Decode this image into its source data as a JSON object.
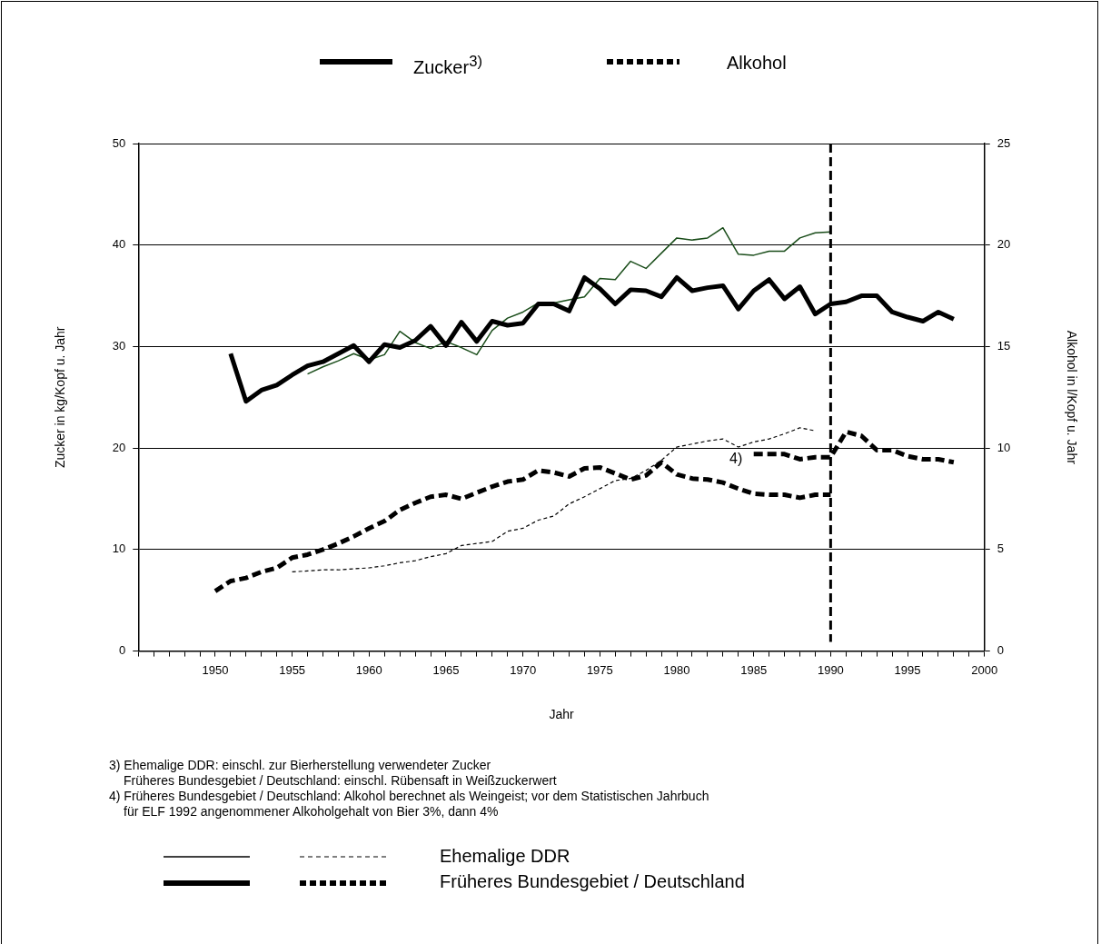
{
  "chart_data": {
    "type": "line",
    "xlabel": "Jahr",
    "ylabel": "Zucker in kg/Kopf u. Jahr",
    "y2label": "Alkohol in l/Kopf u. Jahr",
    "xlim": [
      1945,
      2000
    ],
    "xticks": [
      {
        "value": 1945,
        "label": null
      },
      {
        "value": 1946,
        "label": null
      },
      {
        "value": 1947,
        "label": null
      },
      {
        "value": 1948,
        "label": null
      },
      {
        "value": 1949,
        "label": null
      },
      1950,
      {
        "value": 1951,
        "label": null
      },
      {
        "value": 1952,
        "label": null
      },
      {
        "value": 1953,
        "label": null
      },
      {
        "value": 1954,
        "label": null
      },
      1955,
      {
        "value": 1956,
        "label": null
      },
      {
        "value": 1957,
        "label": null
      },
      {
        "value": 1958,
        "label": null
      },
      {
        "value": 1959,
        "label": null
      },
      1960,
      {
        "value": 1961,
        "label": null
      },
      {
        "value": 1962,
        "label": null
      },
      {
        "value": 1963,
        "label": null
      },
      {
        "value": 1964,
        "label": null
      },
      1965,
      {
        "value": 1966,
        "label": null
      },
      {
        "value": 1967,
        "label": null
      },
      {
        "value": 1968,
        "label": null
      },
      {
        "value": 1969,
        "label": null
      },
      1970,
      {
        "value": 1971,
        "label": null
      },
      {
        "value": 1972,
        "label": null
      },
      {
        "value": 1973,
        "label": null
      },
      {
        "value": 1974,
        "label": null
      },
      1975,
      {
        "value": 1976,
        "label": null
      },
      {
        "value": 1977,
        "label": null
      },
      {
        "value": 1978,
        "label": null
      },
      {
        "value": 1979,
        "label": null
      },
      1980,
      {
        "value": 1981,
        "label": null
      },
      {
        "value": 1982,
        "label": null
      },
      {
        "value": 1983,
        "label": null
      },
      {
        "value": 1984,
        "label": null
      },
      1985,
      {
        "value": 1986,
        "label": null
      },
      {
        "value": 1987,
        "label": null
      },
      {
        "value": 1988,
        "label": null
      },
      {
        "value": 1989,
        "label": null
      },
      1990,
      {
        "value": 1991,
        "label": null
      },
      {
        "value": 1992,
        "label": null
      },
      {
        "value": 1993,
        "label": null
      },
      {
        "value": 1994,
        "label": null
      },
      1995,
      {
        "value": 1996,
        "label": null
      },
      {
        "value": 1997,
        "label": null
      },
      {
        "value": 1998,
        "label": null
      },
      {
        "value": 1999,
        "label": null
      },
      2000
    ],
    "ylim": [
      0,
      50
    ],
    "yticks": [
      0,
      10,
      20,
      30,
      40,
      50
    ],
    "y2lim": [
      0,
      25
    ],
    "y2ticks": [
      0,
      5,
      10,
      15,
      20,
      25
    ],
    "grid": "y",
    "marker": "none",
    "series": [
      {
        "color": "#000000",
        "line_style": "solid",
        "x": [
          1951,
          1952,
          1953,
          1954,
          1955,
          1956,
          1957,
          1958,
          1959,
          1960,
          1961,
          1962,
          1963,
          1964,
          1965,
          1966,
          1967,
          1968,
          1969,
          1970,
          1971,
          1972,
          1973,
          1974,
          1975,
          1976,
          1977,
          1978,
          1979,
          1980,
          1981,
          1982,
          1983,
          1984,
          1985,
          1986,
          1987,
          1988,
          1989,
          1990,
          1991,
          1992,
          1993,
          1994,
          1995,
          1996,
          1997,
          1998
        ],
        "values": [
          29.3,
          24.6,
          25.7,
          26.2,
          27.2,
          28.1,
          28.5,
          29.3,
          30.1,
          28.5,
          30.2,
          29.9,
          30.6,
          32.0,
          30.1,
          32.4,
          30.5,
          32.5,
          32.1,
          32.3,
          34.2,
          34.2,
          33.5,
          36.8,
          35.7,
          34.2,
          35.6,
          35.5,
          34.9,
          36.8,
          35.5,
          35.8,
          36.0,
          33.7,
          35.5,
          36.6,
          34.7,
          35.9,
          33.2,
          34.2,
          34.4,
          35.0,
          35.0,
          33.4,
          32.9,
          32.5,
          33.4,
          32.7
        ]
      },
      {
        "color": "#1a4d1a",
        "line_style": "solid",
        "x": [
          1956,
          1957,
          1958,
          1959,
          1960,
          1961,
          1962,
          1963,
          1964,
          1965,
          1966,
          1967,
          1968,
          1969,
          1970,
          1971,
          1972,
          1973,
          1974,
          1975,
          1976,
          1977,
          1978,
          1979,
          1980,
          1981,
          1982,
          1983,
          1984,
          1985,
          1986,
          1987,
          1988,
          1989,
          1990
        ],
        "values": [
          27.3,
          28.0,
          28.6,
          29.3,
          28.7,
          29.2,
          31.5,
          30.4,
          29.8,
          30.5,
          29.9,
          29.2,
          31.6,
          32.8,
          33.4,
          34.3,
          34.3,
          34.6,
          34.9,
          36.7,
          36.6,
          38.4,
          37.7,
          39.2,
          40.7,
          40.5,
          40.7,
          41.7,
          39.1,
          39.0,
          39.4,
          39.4,
          40.7,
          41.2,
          41.3
        ]
      },
      {
        "color": "#000000",
        "line_style": "dashed",
        "axis": "y2",
        "x": [
          1950,
          1951,
          1952,
          1953,
          1954,
          1955,
          1956,
          1957,
          1958,
          1959,
          1960,
          1961,
          1962,
          1963,
          1964,
          1965,
          1966,
          1967,
          1968,
          1969,
          1970,
          1971,
          1972,
          1973,
          1974,
          1975,
          1976,
          1977,
          1978,
          1979,
          1980,
          1981,
          1982,
          1983,
          1984,
          1985,
          1986,
          1987,
          1988,
          1989,
          1990
        ],
        "values": [
          2.95,
          3.45,
          3.6,
          3.9,
          4.1,
          4.6,
          4.75,
          5.0,
          5.3,
          5.65,
          6.05,
          6.4,
          6.95,
          7.3,
          7.6,
          7.7,
          7.5,
          7.8,
          8.1,
          8.35,
          8.45,
          8.9,
          8.8,
          8.6,
          9.0,
          9.05,
          8.75,
          8.45,
          8.65,
          9.3,
          8.7,
          8.5,
          8.45,
          8.3,
          8.0,
          7.75,
          7.7,
          7.7,
          7.55,
          7.7,
          7.7
        ]
      },
      {
        "color": "#000000",
        "line_style": "dashed",
        "axis": "y2",
        "x": [
          1985,
          1986,
          1987,
          1988,
          1989,
          1990,
          1991,
          1992,
          1993,
          1994,
          1995,
          1996,
          1997,
          1998
        ],
        "values": [
          9.7,
          9.7,
          9.7,
          9.45,
          9.55,
          9.55,
          10.8,
          10.6,
          9.9,
          9.9,
          9.6,
          9.45,
          9.45,
          9.3
        ]
      },
      {
        "color": "#000000",
        "line_style": "dashed",
        "axis": "y2",
        "x": [
          1955,
          1956,
          1957,
          1958,
          1959,
          1960,
          1961,
          1962,
          1963,
          1964,
          1965,
          1966,
          1967,
          1968,
          1969,
          1970,
          1971,
          1972,
          1973,
          1974,
          1975,
          1976,
          1977,
          1978,
          1979,
          1980,
          1981,
          1982,
          1983,
          1984,
          1985,
          1986,
          1987,
          1988,
          1989
        ],
        "values": [
          3.9,
          3.95,
          4.0,
          4.0,
          4.05,
          4.1,
          4.2,
          4.35,
          4.45,
          4.65,
          4.8,
          5.2,
          5.3,
          5.4,
          5.9,
          6.05,
          6.45,
          6.65,
          7.25,
          7.6,
          8.0,
          8.4,
          8.5,
          8.9,
          9.4,
          10.05,
          10.2,
          10.35,
          10.45,
          10.05,
          10.3,
          10.45,
          10.7,
          11.0,
          10.85
        ]
      }
    ],
    "ref_lines": [
      {
        "axis": "x",
        "value": 1990,
        "color": "#000000",
        "line_style": "dashed"
      }
    ],
    "annotations": [
      "Zucker$^{3)}$",
      "Alkohol",
      "4)",
      "3) Ehemalige DDR: einschl. zur Bierherstellung verwendeter Zucker",
      "Früheres Bundesgebiet / Deutschland: einschl. Rübensaft in Weißzuckerwert",
      "4) Früheres Bundesgebiet / Deutschland: Alkohol berechnet als Weingeist; vor dem Statistischen Jahrbuch",
      "für ELF 1992 angenommener Alkoholgehalt von Bier 3%, dann 4%",
      "Ehemalige DDR",
      "Früheres Bundesgebiet / Deutschland"
    ]
  }
}
